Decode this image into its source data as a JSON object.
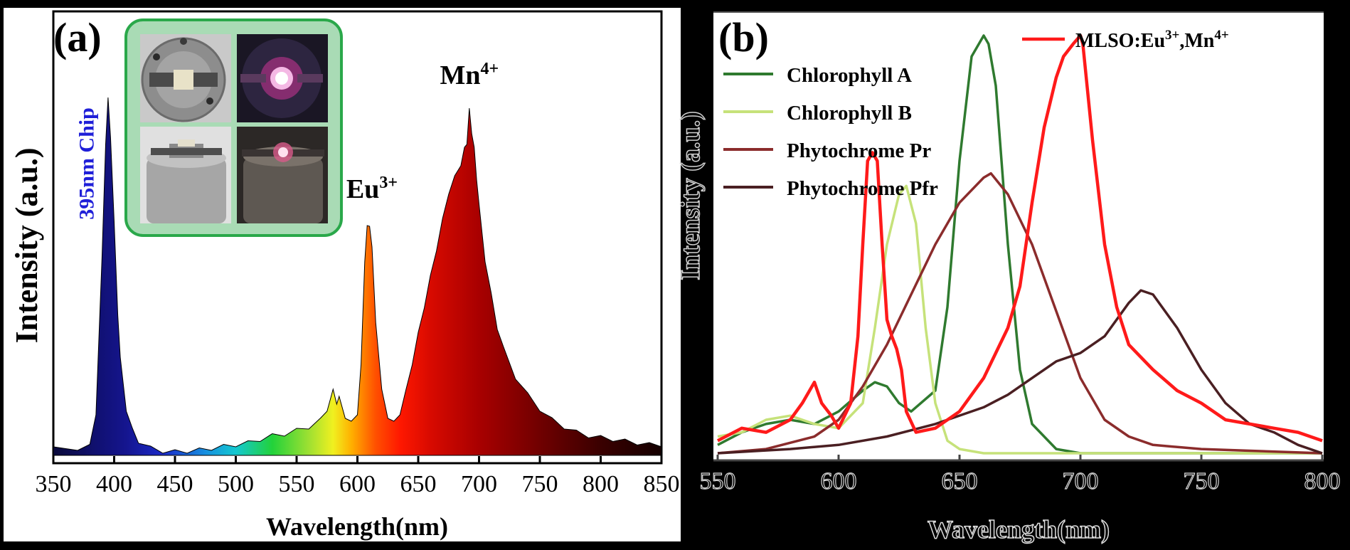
{
  "chart_data": [
    {
      "panel_label": "(a)",
      "type": "area",
      "xlabel": "Wavelength(nm)",
      "ylabel": "Intensity (a.u.)",
      "xlim": [
        350,
        850
      ],
      "x_ticks": [
        350,
        400,
        450,
        500,
        550,
        600,
        650,
        700,
        750,
        800,
        850
      ],
      "grid": false,
      "fill": "spectrum-colored",
      "annotations": [
        {
          "text": "395nm Chip",
          "x": 390,
          "y": 0.6,
          "color": "#1f1fd8",
          "orientation": "vertical"
        },
        {
          "base": "Eu",
          "sup": "3+",
          "x": 612,
          "y": 0.68
        },
        {
          "base": "Mn",
          "sup": "4+",
          "x": 692,
          "y": 1.0
        }
      ],
      "inset": {
        "type": "photo-grid",
        "rows": 2,
        "cols": 2,
        "border_color": "#2aa84a"
      },
      "series": [
        {
          "x": [
            350,
            370,
            380,
            385,
            390,
            393,
            395,
            397,
            400,
            403,
            405,
            410,
            415,
            420,
            430,
            440,
            450,
            460,
            470,
            480,
            490,
            500,
            510,
            520,
            530,
            540,
            550,
            560,
            570,
            575,
            580,
            583,
            585,
            590,
            595,
            600,
            603,
            606,
            608,
            610,
            612,
            615,
            620,
            625,
            630,
            635,
            640,
            645,
            650,
            655,
            660,
            665,
            670,
            675,
            680,
            685,
            688,
            690,
            692,
            694,
            696,
            698,
            700,
            705,
            710,
            715,
            720,
            730,
            740,
            750,
            760,
            770,
            780,
            790,
            800,
            810,
            820,
            830,
            840,
            850
          ],
          "y": [
            0.018,
            0.02,
            0.025,
            0.12,
            0.55,
            0.88,
            1.0,
            0.9,
            0.65,
            0.4,
            0.27,
            0.13,
            0.07,
            0.04,
            0.02,
            0.012,
            0.01,
            0.012,
            0.015,
            0.02,
            0.025,
            0.03,
            0.035,
            0.045,
            0.055,
            0.06,
            0.07,
            0.08,
            0.1,
            0.13,
            0.18,
            0.15,
            0.16,
            0.11,
            0.09,
            0.12,
            0.25,
            0.55,
            0.64,
            0.65,
            0.58,
            0.38,
            0.18,
            0.11,
            0.09,
            0.12,
            0.18,
            0.26,
            0.34,
            0.42,
            0.5,
            0.58,
            0.66,
            0.74,
            0.78,
            0.82,
            0.86,
            0.88,
            0.97,
            0.91,
            0.86,
            0.78,
            0.7,
            0.55,
            0.45,
            0.36,
            0.3,
            0.22,
            0.17,
            0.13,
            0.1,
            0.08,
            0.065,
            0.055,
            0.05,
            0.045,
            0.04,
            0.035,
            0.03,
            0.03
          ]
        }
      ]
    },
    {
      "panel_label": "(b)",
      "type": "line",
      "xlabel": "Wavelength(nm)",
      "ylabel": "Intensity (a.u.)",
      "xlim": [
        550,
        800
      ],
      "x_ticks": [
        550,
        600,
        650,
        700,
        750,
        800
      ],
      "grid": false,
      "legend": {
        "placement": "top",
        "entries": [
          {
            "label": "MLSO:Eu",
            "sup": "3+",
            "label2": ",Mn",
            "sup2": "4+",
            "color": "#ff1a1a"
          },
          {
            "label": "Chlorophyll A",
            "color": "#2f7a2f"
          },
          {
            "label": "Chlorophyll B",
            "color": "#c6e27a"
          },
          {
            "label": "Phytochrome Pr",
            "color": "#8b2c2c"
          },
          {
            "label": "Phytochrome Pfr",
            "color": "#4a1f22"
          }
        ]
      },
      "series": [
        {
          "name": "MLSO:Eu3+,Mn4+",
          "color": "#ff1a1a",
          "x": [
            550,
            560,
            570,
            580,
            585,
            590,
            593,
            597,
            600,
            605,
            608,
            610,
            612,
            614,
            616,
            618,
            620,
            622,
            624,
            626,
            628,
            632,
            640,
            650,
            660,
            670,
            675,
            680,
            685,
            690,
            693,
            697,
            700,
            701,
            705,
            710,
            715,
            720,
            730,
            740,
            750,
            760,
            770,
            780,
            790,
            800
          ],
          "y": [
            0.03,
            0.06,
            0.05,
            0.08,
            0.12,
            0.17,
            0.12,
            0.09,
            0.06,
            0.12,
            0.28,
            0.5,
            0.7,
            0.72,
            0.7,
            0.5,
            0.32,
            0.28,
            0.25,
            0.2,
            0.1,
            0.05,
            0.06,
            0.1,
            0.18,
            0.3,
            0.4,
            0.6,
            0.78,
            0.9,
            0.95,
            0.98,
            1.0,
            0.98,
            0.75,
            0.5,
            0.35,
            0.26,
            0.2,
            0.15,
            0.12,
            0.08,
            0.07,
            0.06,
            0.05,
            0.03
          ]
        },
        {
          "name": "Chlorophyll A",
          "color": "#2f7a2f",
          "x": [
            550,
            560,
            570,
            580,
            590,
            600,
            610,
            615,
            620,
            625,
            630,
            640,
            645,
            650,
            655,
            660,
            662,
            665,
            670,
            675,
            680,
            690,
            700,
            800
          ],
          "y": [
            0.02,
            0.05,
            0.07,
            0.08,
            0.07,
            0.1,
            0.15,
            0.17,
            0.16,
            0.12,
            0.1,
            0.15,
            0.35,
            0.7,
            0.95,
            1.0,
            0.98,
            0.88,
            0.5,
            0.2,
            0.07,
            0.01,
            0.0,
            0.0
          ]
        },
        {
          "name": "Chlorophyll B",
          "color": "#c6e27a",
          "x": [
            550,
            560,
            570,
            580,
            590,
            600,
            610,
            615,
            620,
            625,
            628,
            632,
            636,
            640,
            645,
            650,
            660,
            700,
            800
          ],
          "y": [
            0.04,
            0.05,
            0.08,
            0.09,
            0.07,
            0.06,
            0.12,
            0.3,
            0.5,
            0.62,
            0.64,
            0.55,
            0.3,
            0.12,
            0.03,
            0.01,
            0.0,
            0.0,
            0.0
          ]
        },
        {
          "name": "Phytochrome Pr",
          "color": "#8b2c2c",
          "x": [
            550,
            570,
            590,
            600,
            610,
            620,
            630,
            640,
            650,
            660,
            663,
            670,
            680,
            690,
            700,
            710,
            720,
            730,
            750,
            800
          ],
          "y": [
            0.0,
            0.01,
            0.04,
            0.08,
            0.16,
            0.26,
            0.38,
            0.5,
            0.6,
            0.66,
            0.67,
            0.62,
            0.5,
            0.34,
            0.18,
            0.08,
            0.04,
            0.02,
            0.01,
            0.0
          ]
        },
        {
          "name": "Phytochrome Pfr",
          "color": "#4a1f22",
          "x": [
            550,
            580,
            600,
            620,
            640,
            660,
            670,
            680,
            690,
            700,
            710,
            720,
            725,
            730,
            740,
            750,
            760,
            770,
            780,
            790,
            800
          ],
          "y": [
            0.0,
            0.01,
            0.02,
            0.04,
            0.07,
            0.11,
            0.14,
            0.18,
            0.22,
            0.24,
            0.28,
            0.36,
            0.39,
            0.38,
            0.3,
            0.2,
            0.12,
            0.07,
            0.05,
            0.02,
            0.0
          ]
        }
      ]
    }
  ]
}
